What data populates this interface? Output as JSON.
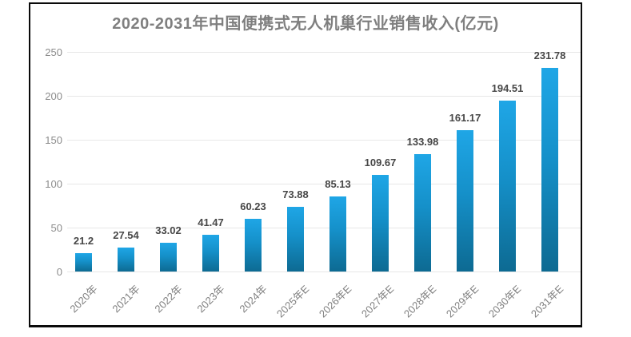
{
  "page": {
    "background_color": "#ffffff",
    "frame_border_color": "#0a0a0a"
  },
  "chart_data": {
    "type": "bar",
    "title": "2020-2031年中国便携式无人机巢行业销售收入(亿元)",
    "categories": [
      "2020年",
      "2021年",
      "2022年",
      "2023年",
      "2024年",
      "2025年E",
      "2026年E",
      "2027年E",
      "2028年E",
      "2029年E",
      "2030年E",
      "2031年E"
    ],
    "values": [
      21.2,
      27.54,
      33.02,
      41.47,
      60.23,
      73.88,
      85.13,
      109.67,
      133.98,
      161.17,
      194.51,
      231.78
    ],
    "data_labels": [
      "21.2",
      "27.54",
      "33.02",
      "41.47",
      "60.23",
      "73.88",
      "85.13",
      "109.67",
      "133.98",
      "161.17",
      "194.51",
      "231.78"
    ],
    "xlabel": "",
    "ylabel": "",
    "ylim": [
      0,
      250
    ],
    "y_ticks": [
      0,
      50,
      100,
      150,
      200,
      250
    ],
    "grid": true,
    "legend_position": "none",
    "bar_color_top": "#1fa6e6",
    "bar_color_bottom": "#0d6a92",
    "title_color": "#7f7f7f",
    "axis_label_color": "#8c8c8c",
    "data_label_color": "#474747"
  }
}
